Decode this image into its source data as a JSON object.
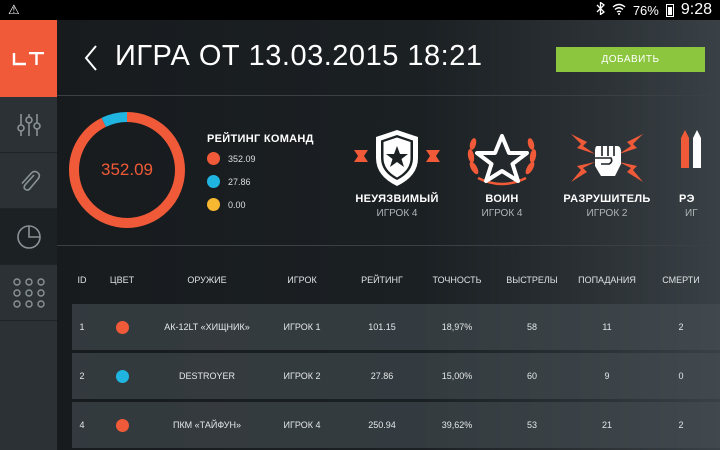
{
  "status": {
    "warning": "⚠",
    "battery": "76%",
    "time": "9:28"
  },
  "sidebar": {
    "logo": "LT",
    "items": [
      {
        "name": "settings-sliders"
      },
      {
        "name": "attachment"
      },
      {
        "name": "statistics"
      },
      {
        "name": "apps-grid"
      }
    ]
  },
  "header": {
    "title": "ИГРА ОТ 13.03.2015 18:21",
    "add_button": "ДОБАВИТЬ"
  },
  "rating": {
    "value": "352.09",
    "title": "РЕЙТИНГ КОМАНД",
    "legend": [
      {
        "value": "352.09",
        "color": "#f15a38"
      },
      {
        "value": "27.86",
        "color": "#1fb5e0"
      },
      {
        "value": "0.00",
        "color": "#f7b731"
      }
    ]
  },
  "achievements": [
    {
      "title": "НЕУЯЗВИМЫЙ",
      "player": "ИГРОК 4",
      "icon": "shield-star-icon"
    },
    {
      "title": "ВОИН",
      "player": "ИГРОК 4",
      "icon": "laurel-star-icon"
    },
    {
      "title": "РАЗРУШИТЕЛЬ",
      "player": "ИГРОК 2",
      "icon": "fist-lightning-icon"
    },
    {
      "title": "РЭ",
      "player": "ИГ",
      "icon": "bullets-icon"
    }
  ],
  "table": {
    "headers": [
      "ID",
      "ЦВЕТ",
      "ОРУЖИЕ",
      "ИГРОК",
      "РЕЙТИНГ",
      "ТОЧНОСТЬ",
      "ВЫСТРЕЛЫ",
      "ПОПАДАНИЯ",
      "СМЕРТИ"
    ],
    "rows": [
      {
        "id": "1",
        "color": "#f15a38",
        "weapon": "АК-12LT «ХИЩНИК»",
        "player": "ИГРОК 1",
        "rating": "101.15",
        "accuracy": "18,97%",
        "shots": "58",
        "hits": "11",
        "deaths": "2"
      },
      {
        "id": "2",
        "color": "#1fb5e0",
        "weapon": "DESTROYER",
        "player": "ИГРОК 2",
        "rating": "27.86",
        "accuracy": "15,00%",
        "shots": "60",
        "hits": "9",
        "deaths": "0"
      },
      {
        "id": "4",
        "color": "#f15a38",
        "weapon": "ПКМ «ТАЙФУН»",
        "player": "ИГРОК 4",
        "rating": "250.94",
        "accuracy": "39,62%",
        "shots": "53",
        "hits": "21",
        "deaths": "2"
      }
    ]
  },
  "colors": {
    "accent": "#f15a38",
    "green": "#8bc63e",
    "blue": "#1fb5e0",
    "yellow": "#f7b731"
  }
}
